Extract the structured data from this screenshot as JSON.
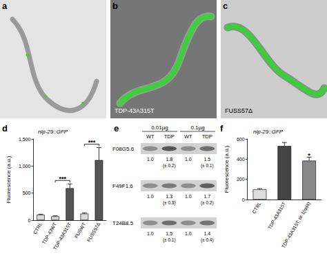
{
  "images": [
    {
      "label": "a"
    },
    {
      "label": "b",
      "caption": "TDP-43A315T"
    },
    {
      "label": "c",
      "caption": "FUSS57Δ"
    }
  ],
  "chart_data": [
    {
      "label": "d",
      "type": "bar",
      "title": "nlp-29::GFP",
      "y_label": "Fluorescence (a.u.)",
      "categories": [
        "CTRL",
        "TDP-43WT",
        "TDP-43A315T",
        "FUSWT",
        "FUSS57Δ"
      ],
      "values": [
        100,
        70,
        590,
        120,
        1110
      ],
      "errors": [
        10,
        10,
        80,
        15,
        230
      ],
      "colors": [
        "#d9d9d9",
        "#d9d9d9",
        "#555555",
        "#d9d9d9",
        "#555555"
      ],
      "ylim": [
        0,
        1500
      ],
      "yticks": [
        0,
        500,
        {
          "value": 1000,
          "label": "1,000"
        },
        {
          "value": 1500,
          "label": "1,500"
        }
      ],
      "grid": false,
      "annotations": [
        {
          "text": "***",
          "categories": [
            1,
            2
          ]
        },
        {
          "text": "***",
          "categories": [
            3,
            4
          ]
        }
      ]
    },
    {
      "label": "f",
      "type": "bar",
      "title": "nlp-29::GFP",
      "y_label": "Fluorescence (a.u.)",
      "categories": [
        "CTRL",
        "TDP-43A315T",
        "TDP-43A315T; tir-1(qd4)"
      ],
      "values": [
        100,
        530,
        385
      ],
      "errors": [
        8,
        35,
        35
      ],
      "colors": [
        "#dddddd",
        "#444444",
        "#888888"
      ],
      "ylim": [
        0,
        600
      ],
      "yticks": [
        0,
        200,
        400,
        600
      ],
      "grid": false,
      "annotations": [
        {
          "text": "*",
          "categories": [
            2
          ]
        }
      ]
    }
  ],
  "gel": {
    "label": "e",
    "doses": [
      "0.01µg",
      "0.1µg"
    ],
    "lanes": [
      "WT",
      "TDP",
      "WT",
      "TDP"
    ],
    "rows": [
      {
        "gene": "F08G5.6",
        "values": [
          "1.0",
          "1.8",
          "1.0",
          "1.5"
        ],
        "errors": [
          null,
          "(± 0.2)",
          null,
          "(± 0.1)"
        ]
      },
      {
        "gene": "F49F1.6",
        "values": [
          "1.0",
          "1.3",
          "1.0",
          "1.7"
        ],
        "errors": [
          null,
          "(± 0.3)",
          null,
          "(± 0.2)"
        ]
      },
      {
        "gene": "T24B8.5",
        "values": [
          "1.0",
          "1.5",
          "1.0",
          "1.4"
        ],
        "errors": [
          null,
          "(± 0.1)",
          null,
          "(± 0.4)"
        ]
      }
    ]
  }
}
